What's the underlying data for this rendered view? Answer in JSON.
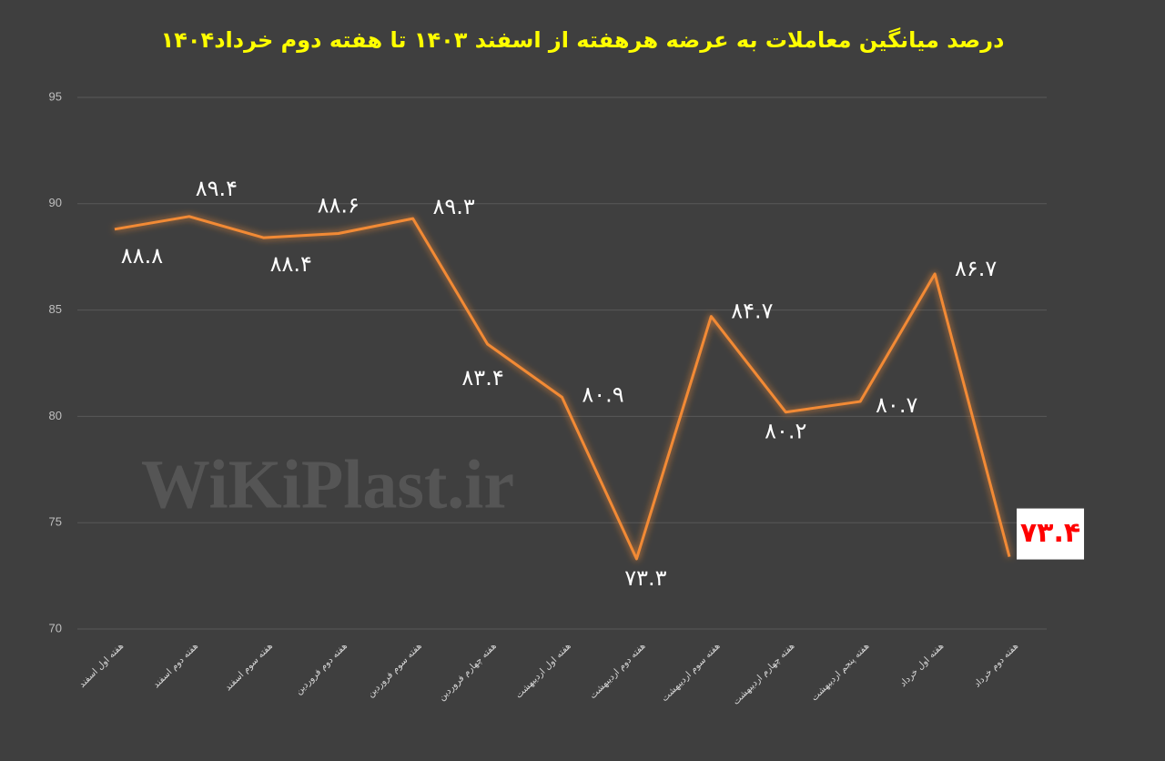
{
  "chart_data": {
    "type": "line",
    "title": "درصد میانگین معاملات به عرضه هرهفته از اسفند ۱۴۰۳ تا هفته دوم خرداد۱۴۰۴",
    "watermark": "WiKiPlast.ir",
    "categories": [
      "هفته اول اسفند",
      "هفته دوم اسفند",
      "هفته سوم اسفند",
      "هفته دوم فروردین",
      "هفته سوم فروردین",
      "هفته چهارم فروردین",
      "هفته اول اردیبهشت",
      "هفته دوم اردیبهشت",
      "هفته سوم اردیبهشت",
      "هفته چهارم اردیبهشت",
      "هفته پنجم اردیبهشت",
      "هفته اول خرداد",
      "هفته دوم خرداد"
    ],
    "values": [
      88.8,
      89.4,
      88.4,
      88.6,
      89.3,
      83.4,
      80.9,
      73.3,
      84.7,
      80.2,
      80.7,
      86.7,
      73.4
    ],
    "value_labels": [
      "۸۸.۸",
      "۸۹.۴",
      "۸۸.۴",
      "۸۸.۶",
      "۸۹.۳",
      "۸۳.۴",
      "۸۰.۹",
      "۷۳.۳",
      "۸۴.۷",
      "۸۰.۲",
      "۸۰.۷",
      "۸۶.۷",
      "۷۳.۴"
    ],
    "color": "#f28a35",
    "ylim": [
      70,
      95
    ],
    "yticks": [
      70,
      75,
      80,
      85,
      90,
      95
    ],
    "grid": true
  }
}
